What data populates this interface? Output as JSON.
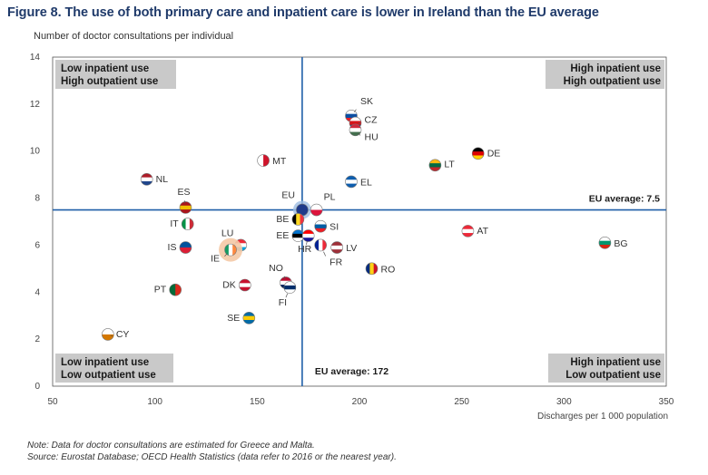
{
  "title": "Figure 8. The use of both primary care and inpatient care is lower in Ireland than the EU average",
  "notes": [
    "Note: Data for doctor consultations are estimated for Greece and Malta.",
    "Source: Eurostat Database; OECD Health Statistics (data refer to 2016 or the nearest year)."
  ],
  "chart_data": {
    "type": "scatter",
    "title": "Figure 8. The use of both primary care and inpatient care is lower in Ireland than the EU average",
    "xlabel": "Discharges per 1 000 population",
    "ylabel": "Number of doctor consultations per individual",
    "xlim": [
      50,
      350
    ],
    "ylim": [
      0,
      14
    ],
    "xticks": [
      50,
      100,
      150,
      200,
      250,
      300,
      350
    ],
    "yticks": [
      0,
      2,
      4,
      6,
      8,
      10,
      12,
      14
    ],
    "eu_average_x": 172,
    "eu_average_y": 7.5,
    "eu_average_x_label": "EU average: 172",
    "eu_average_y_label": "EU average: 7.5",
    "quadrants": {
      "top_left": [
        "Low inpatient use",
        "High outpatient use"
      ],
      "top_right": [
        "High inpatient use",
        "High outpatient use"
      ],
      "bottom_left": [
        "Low inpatient use",
        "Low outpatient use"
      ],
      "bottom_right": [
        "High inpatient use",
        "Low outpatient use"
      ]
    },
    "points": [
      {
        "label": "SK",
        "x": 196,
        "y": 11.5,
        "colors": [
          "#ffffff",
          "#0b4ea2",
          "#ee1c25"
        ],
        "stripes": "h"
      },
      {
        "label": "CZ",
        "x": 198,
        "y": 11.2,
        "colors": [
          "#ffffff",
          "#d7141a",
          "#11457e"
        ],
        "stripes": "h"
      },
      {
        "label": "HU",
        "x": 198,
        "y": 10.9,
        "colors": [
          "#cd2a3e",
          "#ffffff",
          "#436f4d"
        ],
        "stripes": "h"
      },
      {
        "label": "DE",
        "x": 258,
        "y": 9.9,
        "colors": [
          "#000000",
          "#dd0000",
          "#ffce00"
        ],
        "stripes": "h"
      },
      {
        "label": "LT",
        "x": 237,
        "y": 9.4,
        "colors": [
          "#fdb913",
          "#006a44",
          "#c1272d"
        ],
        "stripes": "h"
      },
      {
        "label": "MT",
        "x": 153,
        "y": 9.6,
        "colors": [
          "#ffffff",
          "#cf142b"
        ],
        "stripes": "v"
      },
      {
        "label": "NL",
        "x": 96,
        "y": 8.8,
        "colors": [
          "#ae1c28",
          "#ffffff",
          "#21468b"
        ],
        "stripes": "h"
      },
      {
        "label": "EL",
        "x": 196,
        "y": 8.7,
        "colors": [
          "#0d5eaf",
          "#ffffff",
          "#0d5eaf"
        ],
        "stripes": "h"
      },
      {
        "label": "ES",
        "x": 115,
        "y": 7.6,
        "colors": [
          "#aa151b",
          "#f1bf00",
          "#aa151b"
        ],
        "stripes": "h"
      },
      {
        "label": "EU",
        "x": 172,
        "y": 7.5,
        "colors": [
          "#1f3a8a"
        ],
        "stripes": "h"
      },
      {
        "label": "PL",
        "x": 179,
        "y": 7.5,
        "colors": [
          "#ffffff",
          "#dc143c"
        ],
        "stripes": "h"
      },
      {
        "label": "BE",
        "x": 170,
        "y": 7.1,
        "colors": [
          "#000000",
          "#fdda24",
          "#ef3340"
        ],
        "stripes": "v"
      },
      {
        "label": "IT",
        "x": 116,
        "y": 6.9,
        "colors": [
          "#009246",
          "#ffffff",
          "#ce2b37"
        ],
        "stripes": "v"
      },
      {
        "label": "SI",
        "x": 181,
        "y": 6.8,
        "colors": [
          "#ffffff",
          "#005da4",
          "#ed1c24"
        ],
        "stripes": "h"
      },
      {
        "label": "EE",
        "x": 170,
        "y": 6.4,
        "colors": [
          "#0072ce",
          "#000000",
          "#ffffff"
        ],
        "stripes": "h"
      },
      {
        "label": "HR",
        "x": 175,
        "y": 6.4,
        "colors": [
          "#ff0000",
          "#ffffff",
          "#171796"
        ],
        "stripes": "h"
      },
      {
        "label": "AT",
        "x": 253,
        "y": 6.6,
        "colors": [
          "#ed2939",
          "#ffffff",
          "#ed2939"
        ],
        "stripes": "h"
      },
      {
        "label": "BG",
        "x": 320,
        "y": 6.1,
        "colors": [
          "#ffffff",
          "#00966e",
          "#d62612"
        ],
        "stripes": "h"
      },
      {
        "label": "LU",
        "x": 142,
        "y": 6.0,
        "colors": [
          "#ed2939",
          "#ffffff",
          "#00a1de"
        ],
        "stripes": "h"
      },
      {
        "label": "IE",
        "x": 137,
        "y": 5.8,
        "colors": [
          "#169b62",
          "#ffffff",
          "#ff883e"
        ],
        "stripes": "v"
      },
      {
        "label": "FR",
        "x": 181,
        "y": 6.0,
        "colors": [
          "#002395",
          "#ffffff",
          "#ed2939"
        ],
        "stripes": "v"
      },
      {
        "label": "LV",
        "x": 189,
        "y": 5.9,
        "colors": [
          "#9e3039",
          "#ffffff",
          "#9e3039"
        ],
        "stripes": "h"
      },
      {
        "label": "IS",
        "x": 115,
        "y": 5.9,
        "colors": [
          "#02529c",
          "#dc1e35"
        ],
        "stripes": "h"
      },
      {
        "label": "RO",
        "x": 206,
        "y": 5.0,
        "colors": [
          "#002b7f",
          "#fcd116",
          "#ce1126"
        ],
        "stripes": "v"
      },
      {
        "label": "NO",
        "x": 164,
        "y": 4.4,
        "colors": [
          "#ba0c2f",
          "#ffffff",
          "#00205b"
        ],
        "stripes": "h"
      },
      {
        "label": "FI",
        "x": 166,
        "y": 4.2,
        "colors": [
          "#ffffff",
          "#002f6c",
          "#ffffff"
        ],
        "stripes": "h"
      },
      {
        "label": "DK",
        "x": 144,
        "y": 4.3,
        "colors": [
          "#c8102e",
          "#ffffff",
          "#c8102e"
        ],
        "stripes": "h"
      },
      {
        "label": "PT",
        "x": 110,
        "y": 4.1,
        "colors": [
          "#046a38",
          "#da291c"
        ],
        "stripes": "v"
      },
      {
        "label": "SE",
        "x": 146,
        "y": 2.9,
        "colors": [
          "#006aa7",
          "#fecc00",
          "#006aa7"
        ],
        "stripes": "h"
      },
      {
        "label": "CY",
        "x": 77,
        "y": 2.2,
        "colors": [
          "#ffffff",
          "#d57800"
        ],
        "stripes": "h"
      }
    ]
  }
}
